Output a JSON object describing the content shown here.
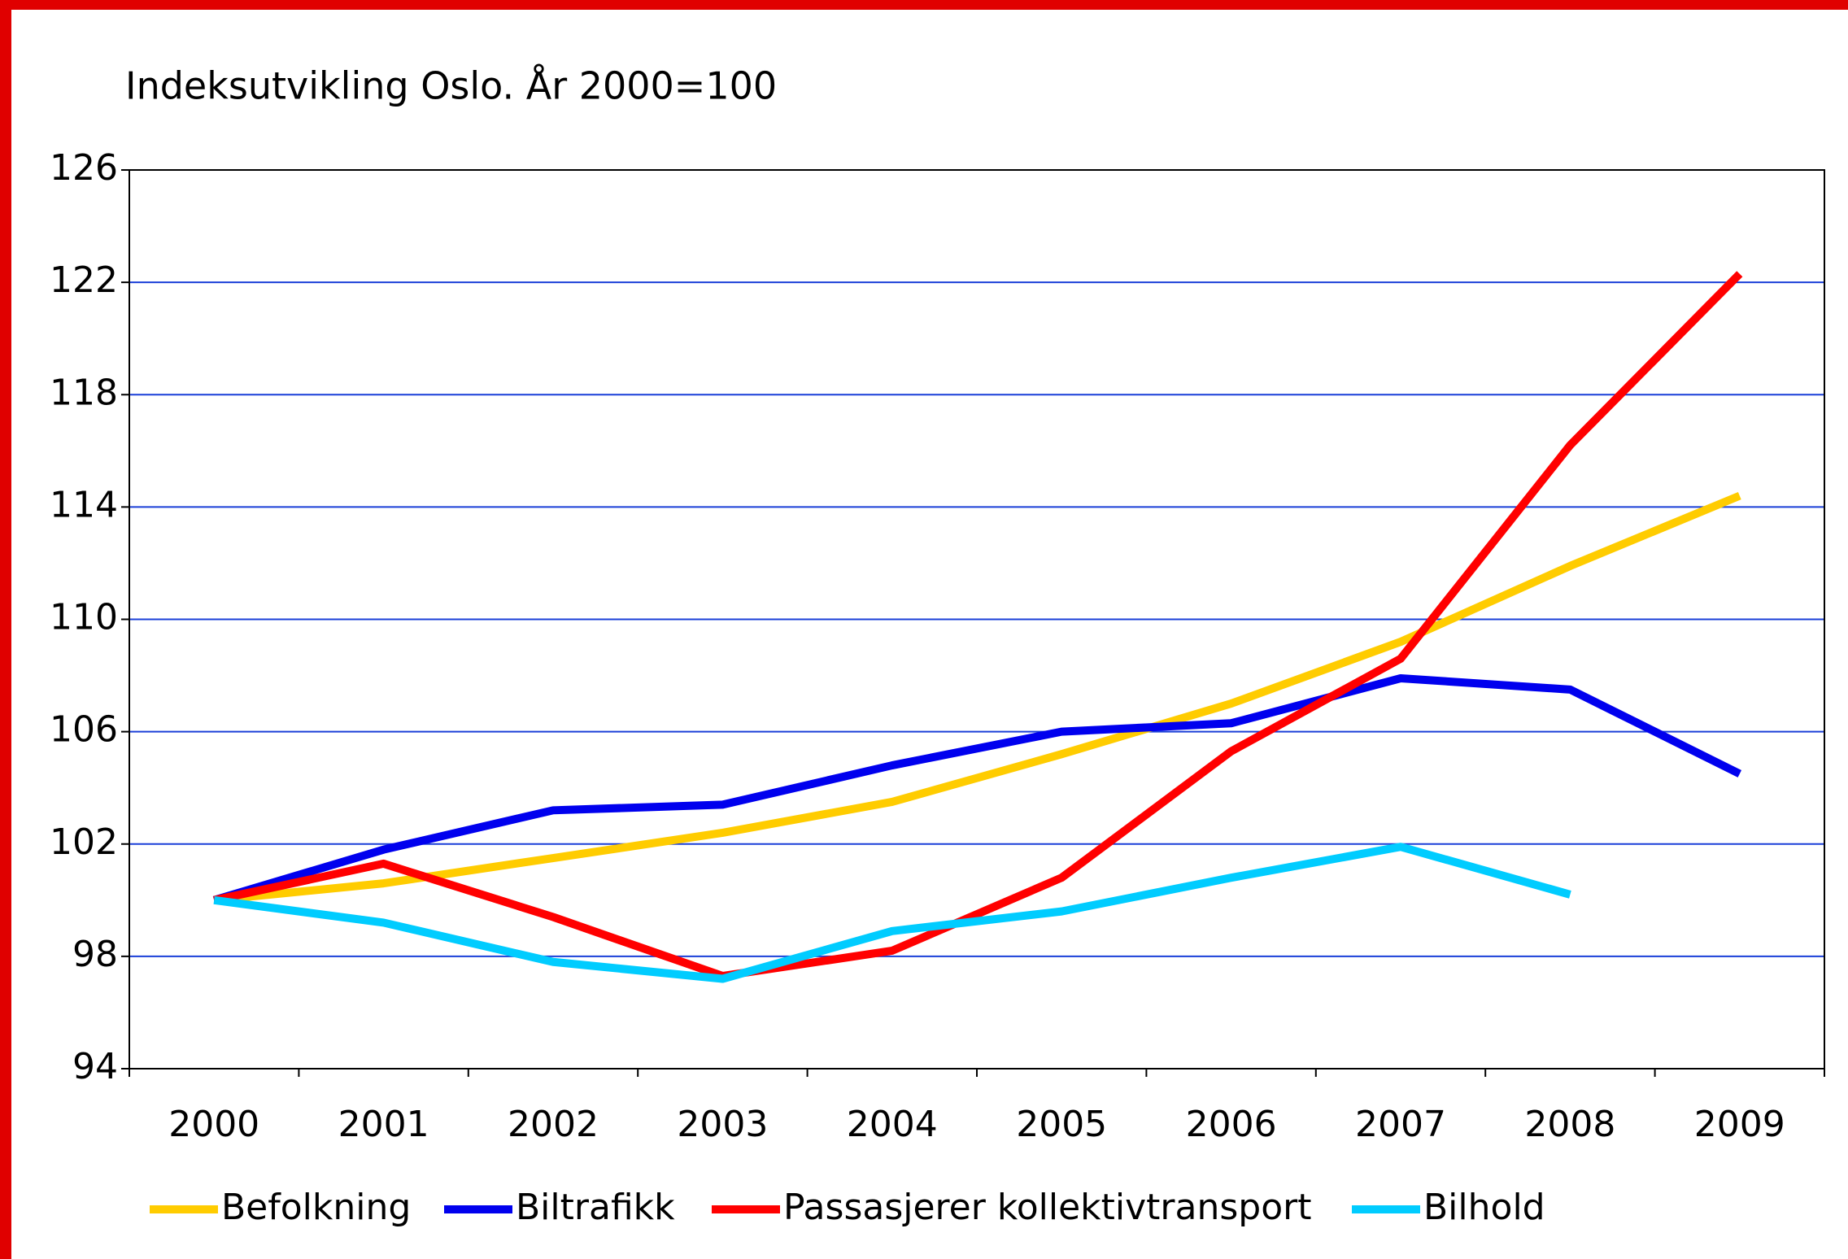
{
  "chart_data": {
    "type": "line",
    "title": "Indeksutvikling Oslo. År 2000=100",
    "categories": [
      "2000",
      "2001",
      "2002",
      "2003",
      "2004",
      "2005",
      "2006",
      "2007",
      "2008",
      "2009"
    ],
    "series": [
      {
        "name": "Befolkning",
        "color": "#ffcc00",
        "values": [
          100,
          100.6,
          101.5,
          102.4,
          103.5,
          105.2,
          107.0,
          109.2,
          111.9,
          114.4
        ]
      },
      {
        "name": "Biltrafikk",
        "color": "#0000ee",
        "values": [
          100,
          101.8,
          103.2,
          103.4,
          104.8,
          106.0,
          106.3,
          107.9,
          107.5,
          104.5
        ]
      },
      {
        "name": "Passasjerer kollektivtransport",
        "color": "#ff0000",
        "values": [
          100,
          101.3,
          99.4,
          97.3,
          98.2,
          100.8,
          105.3,
          108.6,
          116.2,
          122.3
        ]
      },
      {
        "name": "Bilhold",
        "color": "#00ccff",
        "values": [
          100,
          99.2,
          97.8,
          97.2,
          98.9,
          99.6,
          100.8,
          101.9,
          100.2,
          null
        ]
      }
    ],
    "ylim": [
      94,
      126
    ],
    "yticks": [
      94,
      98,
      102,
      106,
      110,
      114,
      118,
      122,
      126
    ],
    "grid": true,
    "legend": "bottom"
  }
}
